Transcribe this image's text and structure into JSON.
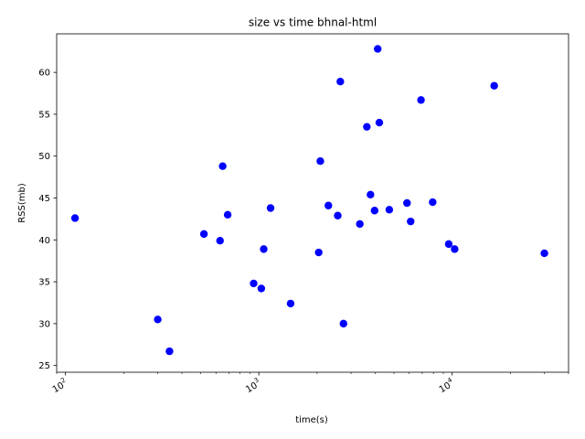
{
  "chart_data": {
    "type": "scatter",
    "title": "size vs time bhnal-html",
    "xlabel": "time(s)",
    "ylabel": "RSS(mb)",
    "xscale": "log",
    "xlim": [
      90,
      40000
    ],
    "ylim": [
      24.2,
      64.6
    ],
    "xticks": [
      {
        "value": 100,
        "base": "10",
        "exp": "2"
      },
      {
        "value": 1000,
        "base": "10",
        "exp": "3"
      },
      {
        "value": 10000,
        "base": "10",
        "exp": "4"
      }
    ],
    "yticks": [
      25,
      30,
      35,
      40,
      45,
      50,
      55,
      60
    ],
    "grid": false,
    "marker_color": "#0000ff",
    "points": [
      {
        "x": 112,
        "y": 42.6
      },
      {
        "x": 300,
        "y": 30.5
      },
      {
        "x": 345,
        "y": 26.7
      },
      {
        "x": 520,
        "y": 40.7
      },
      {
        "x": 630,
        "y": 39.9
      },
      {
        "x": 650,
        "y": 48.8
      },
      {
        "x": 690,
        "y": 43.0
      },
      {
        "x": 940,
        "y": 34.8
      },
      {
        "x": 1030,
        "y": 34.2
      },
      {
        "x": 1060,
        "y": 38.9
      },
      {
        "x": 1150,
        "y": 43.8
      },
      {
        "x": 1460,
        "y": 32.4
      },
      {
        "x": 2040,
        "y": 38.5
      },
      {
        "x": 2080,
        "y": 49.4
      },
      {
        "x": 2290,
        "y": 44.1
      },
      {
        "x": 2560,
        "y": 42.9
      },
      {
        "x": 2640,
        "y": 58.9
      },
      {
        "x": 2740,
        "y": 30.0
      },
      {
        "x": 3330,
        "y": 41.9
      },
      {
        "x": 3620,
        "y": 53.5
      },
      {
        "x": 3780,
        "y": 45.4
      },
      {
        "x": 3970,
        "y": 43.5
      },
      {
        "x": 4120,
        "y": 62.8
      },
      {
        "x": 4200,
        "y": 54.0
      },
      {
        "x": 4730,
        "y": 43.6
      },
      {
        "x": 5840,
        "y": 44.4
      },
      {
        "x": 6100,
        "y": 42.2
      },
      {
        "x": 6900,
        "y": 56.7
      },
      {
        "x": 7930,
        "y": 44.5
      },
      {
        "x": 9600,
        "y": 39.5
      },
      {
        "x": 10300,
        "y": 38.9
      },
      {
        "x": 16500,
        "y": 58.4
      },
      {
        "x": 30000,
        "y": 38.4
      }
    ]
  }
}
